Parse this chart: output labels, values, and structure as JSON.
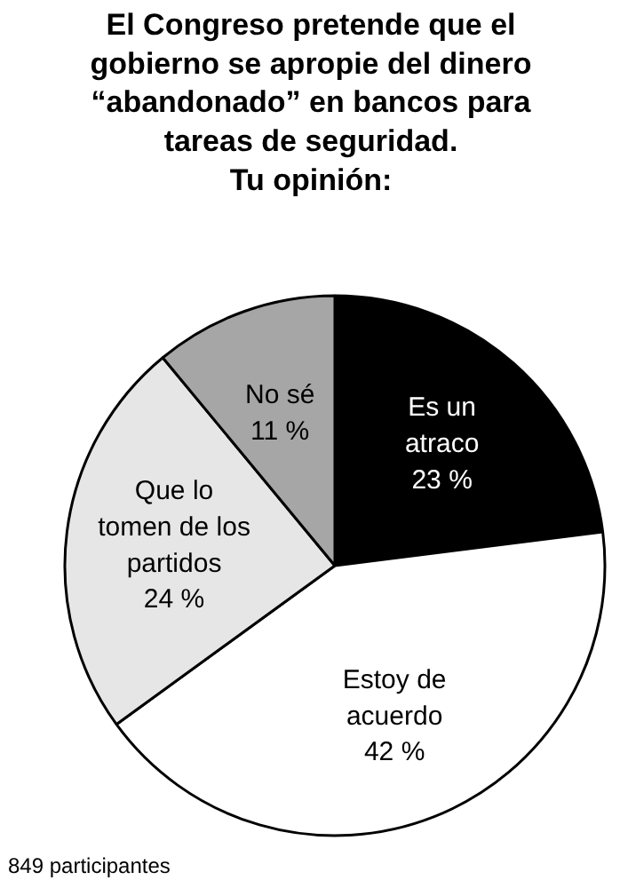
{
  "chart_data": {
    "type": "pie",
    "title": "El Congreso pretende que el\ngobierno se apropie del dinero\n“abandonado” en bancos para\ntareas de seguridad.\nTu opinión:",
    "categories": [
      "Es un\natraco",
      "Estoy de\nacuerdo",
      "Que lo\ntomen de los\npartidos",
      "No sé"
    ],
    "values": [
      23,
      42,
      24,
      11
    ],
    "value_labels": [
      "23 %",
      "42 %",
      "24 %",
      "11 %"
    ],
    "colors": [
      "#000000",
      "#ffffff",
      "#e6e6e6",
      "#a6a6a6"
    ],
    "annotations": [
      "849 participantes"
    ]
  }
}
